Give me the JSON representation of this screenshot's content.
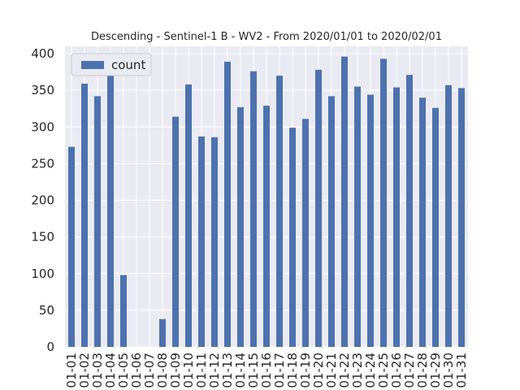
{
  "chart_data": {
    "type": "bar",
    "title": "Descending - Sentinel-1 B - WV2 - From 2020/01/01 to 2020/02/01",
    "xlabel": "",
    "ylabel": "",
    "ylim": [
      0,
      410
    ],
    "yticks": [
      0,
      50,
      100,
      150,
      200,
      250,
      300,
      350,
      400
    ],
    "grid": true,
    "legend_position": "top-left",
    "categories": [
      "01-01",
      "01-02",
      "01-03",
      "01-04",
      "01-05",
      "01-06",
      "01-07",
      "01-08",
      "01-09",
      "01-10",
      "01-11",
      "01-12",
      "01-13",
      "01-14",
      "01-15",
      "01-16",
      "01-17",
      "01-18",
      "01-19",
      "01-20",
      "01-21",
      "01-22",
      "01-23",
      "01-24",
      "01-25",
      "01-26",
      "01-27",
      "01-28",
      "01-29",
      "01-30",
      "01-31"
    ],
    "series": [
      {
        "name": "count",
        "color": "#4c72b0",
        "values": [
          273,
          359,
          342,
          376,
          98,
          0,
          0,
          38,
          314,
          358,
          287,
          286,
          389,
          327,
          376,
          329,
          370,
          299,
          311,
          378,
          342,
          396,
          355,
          344,
          393,
          354,
          371,
          340,
          326,
          357,
          353
        ]
      }
    ]
  }
}
